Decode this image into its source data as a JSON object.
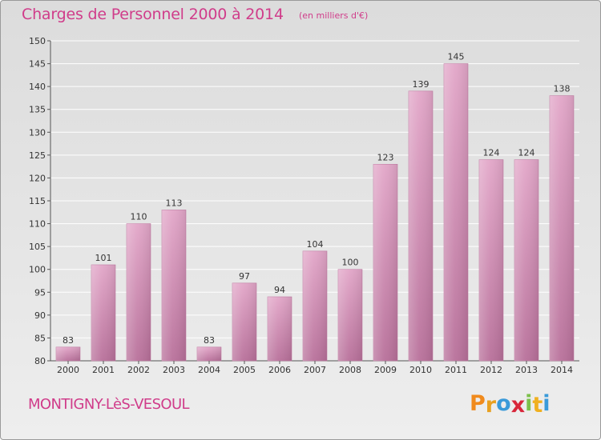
{
  "header": {
    "title": "Charges de Personnel 2000 à 2014",
    "subtitle": "(en milliers d'€)"
  },
  "footer": {
    "commune": "MONTIGNY-LèS-VESOUL",
    "logo": {
      "letters": [
        "P",
        "r",
        "o",
        "x",
        "i",
        "t",
        "i"
      ],
      "colors": [
        "#f08a1c",
        "#e8a020",
        "#3a9ad9",
        "#d8263a",
        "#7cc04a",
        "#f0b020",
        "#3a9ad9"
      ]
    }
  },
  "chart_data": {
    "type": "bar",
    "categories": [
      "2000",
      "2001",
      "2002",
      "2003",
      "2004",
      "2005",
      "2006",
      "2007",
      "2008",
      "2009",
      "2010",
      "2011",
      "2012",
      "2013",
      "2014"
    ],
    "values": [
      83,
      101,
      110,
      113,
      83,
      97,
      94,
      104,
      100,
      123,
      139,
      145,
      124,
      124,
      138
    ],
    "ylim": [
      80,
      150
    ],
    "yticks": [
      80,
      85,
      90,
      95,
      100,
      105,
      110,
      115,
      120,
      125,
      130,
      135,
      140,
      145,
      150
    ],
    "grid": true,
    "bar_color": "#d890b8",
    "bar_color_dark": "#b06090"
  }
}
